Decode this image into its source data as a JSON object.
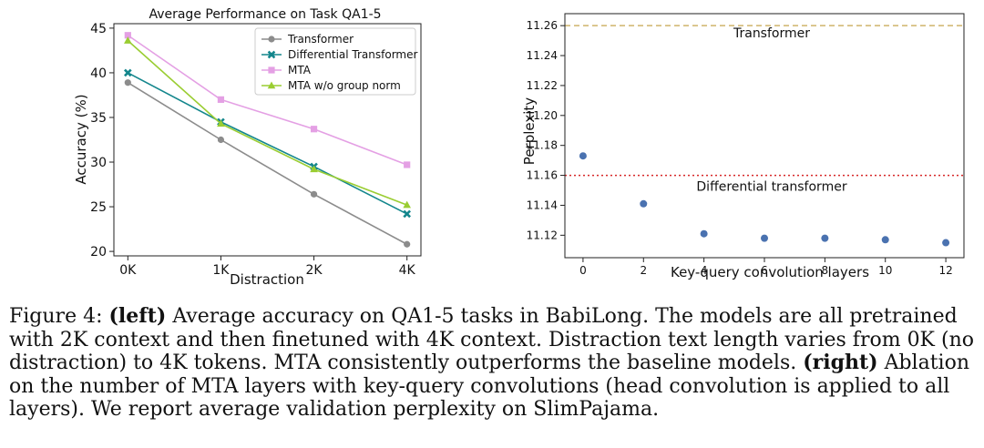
{
  "chart_data": [
    {
      "type": "line",
      "title": "Average Performance on Task QA1-5",
      "xlabel": "Distraction",
      "ylabel": "Accuracy (%)",
      "categories": [
        "0K",
        "1K",
        "2K",
        "4K"
      ],
      "ylim": [
        19.5,
        45.5
      ],
      "yticks": [
        20,
        25,
        30,
        35,
        40,
        45
      ],
      "grid": false,
      "legend": "top-right",
      "series": [
        {
          "name": "Transformer",
          "values": [
            38.9,
            32.5,
            26.4,
            20.8
          ],
          "color": "#8c8c8c",
          "marker": "circle"
        },
        {
          "name": "Differential Transformer",
          "values": [
            40.0,
            34.5,
            29.5,
            24.2
          ],
          "color": "#13868c",
          "marker": "x"
        },
        {
          "name": "MTA",
          "values": [
            44.2,
            37.0,
            33.7,
            29.7
          ],
          "color": "#e4a0e4",
          "marker": "square"
        },
        {
          "name": "MTA w/o group norm",
          "values": [
            43.6,
            34.3,
            29.2,
            25.2
          ],
          "color": "#9acd32",
          "marker": "triangle"
        }
      ]
    },
    {
      "type": "scatter",
      "xlabel": "Key-query convolution layers",
      "ylabel": "Perplexity",
      "x": [
        0,
        2,
        4,
        6,
        8,
        10,
        12
      ],
      "y": [
        11.173,
        11.141,
        11.121,
        11.118,
        11.118,
        11.117,
        11.115
      ],
      "xlim": [
        -0.6,
        12.6
      ],
      "ylim": [
        11.105,
        11.268
      ],
      "xticks": [
        0,
        2,
        4,
        6,
        8,
        10,
        12
      ],
      "yticks": [
        11.12,
        11.14,
        11.16,
        11.18,
        11.2,
        11.22,
        11.24,
        11.26
      ],
      "point_color": "#4a72b0",
      "reference_lines": [
        {
          "label": "Transformer",
          "value": 11.26,
          "color": "#cfb46a",
          "style": "dashed"
        },
        {
          "label": "Differential transformer",
          "value": 11.16,
          "color": "#d62728",
          "style": "dotted"
        }
      ]
    }
  ],
  "caption": {
    "label": "Figure 4:",
    "left_tag": "(left)",
    "text_1": "Average accuracy on QA1-5 tasks in BabiLong. The models are all pretrained with 2K context and then finetuned with 4K context. Distraction text length varies from 0K (no distraction) to 4K tokens. MTA consistently outperforms the baseline models.",
    "right_tag": "(right)",
    "text_2": "Ablation on the number of MTA layers with key-query convolutions (head convolution is applied to all layers). We report average validation perplexity on SlimPajama."
  }
}
